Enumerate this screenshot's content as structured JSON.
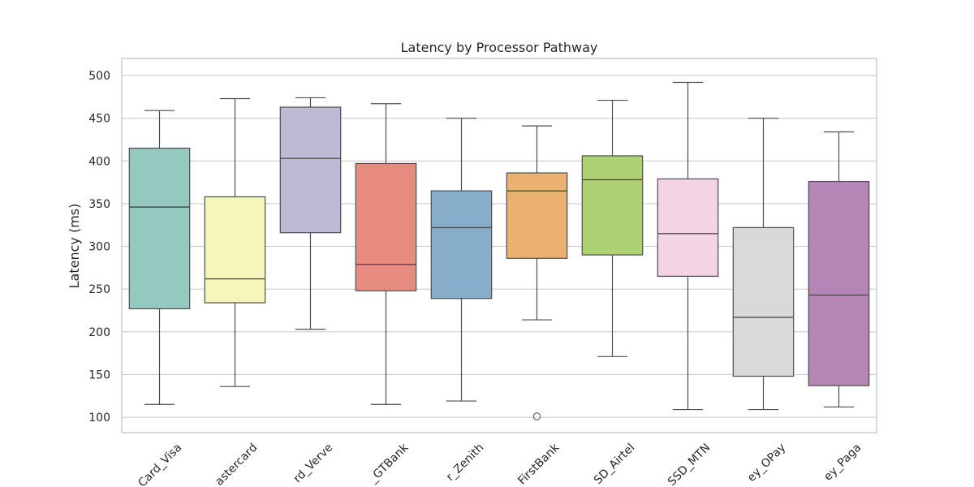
{
  "chart_data": {
    "type": "box",
    "title": "Latency by Processor Pathway",
    "xlabel": "",
    "ylabel": "Latency (ms)",
    "ylim": [
      82,
      520
    ],
    "yticks": [
      100,
      150,
      200,
      250,
      300,
      350,
      400,
      450,
      500
    ],
    "grid": true,
    "categories": [
      "Card_Visa",
      "Card_Mastercard",
      "Card_Verve",
      "Transfer_GTBank",
      "Transfer_Zenith",
      "Transfer_FirstBank",
      "USSD_Airtel",
      "USSD_MTN",
      "Wallet_Money_OPay",
      "Wallet_Money_Paga"
    ],
    "category_labels_visible": [
      "Card_Visa",
      "astercard",
      "rd_Verve",
      "_GTBank",
      "r_Zenith",
      "FirstBank",
      "SD_Airtel",
      "SSD_MTN",
      "ey_OPay",
      "ey_Paga"
    ],
    "boxes": [
      {
        "whislo": 115,
        "q1": 227,
        "med": 346,
        "q3": 415,
        "whishi": 459,
        "fliers": [],
        "color": "#95c9bf"
      },
      {
        "whislo": 136,
        "q1": 234,
        "med": 262,
        "q3": 358,
        "whishi": 473,
        "fliers": [],
        "color": "#f6f6ba"
      },
      {
        "whislo": 203,
        "q1": 316,
        "med": 403,
        "q3": 463,
        "whishi": 474,
        "fliers": [],
        "color": "#bebad5"
      },
      {
        "whislo": 115,
        "q1": 248,
        "med": 279,
        "q3": 397,
        "whishi": 467,
        "fliers": [],
        "color": "#e98c80"
      },
      {
        "whislo": 119,
        "q1": 239,
        "med": 322,
        "q3": 365,
        "whishi": 450,
        "fliers": [],
        "color": "#86aeca"
      },
      {
        "whislo": 214,
        "q1": 286,
        "med": 365,
        "q3": 386,
        "whishi": 441,
        "fliers": [
          101
        ],
        "color": "#ebb171"
      },
      {
        "whislo": 171,
        "q1": 290,
        "med": 378,
        "q3": 406,
        "whishi": 471,
        "fliers": [],
        "color": "#afd176"
      },
      {
        "whislo": 109,
        "q1": 265,
        "med": 315,
        "q3": 379,
        "whishi": 492,
        "fliers": [],
        "color": "#f4d3e4"
      },
      {
        "whislo": 109,
        "q1": 148,
        "med": 217,
        "q3": 322,
        "whishi": 450,
        "fliers": [],
        "color": "#d9d9d9"
      },
      {
        "whislo": 112,
        "q1": 137,
        "med": 243,
        "q3": 376,
        "whishi": 434,
        "fliers": [],
        "color": "#b486b5"
      }
    ]
  }
}
